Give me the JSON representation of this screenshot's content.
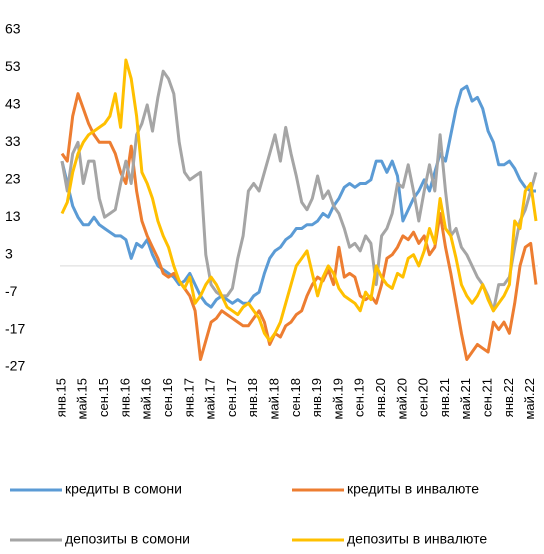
{
  "chart_data": {
    "type": "line",
    "categories": [
      "янв.15",
      null,
      null,
      null,
      "май.15",
      null,
      null,
      null,
      "сен.15",
      null,
      null,
      null,
      "янв.16",
      null,
      null,
      null,
      "май.16",
      null,
      null,
      null,
      "сен.16",
      null,
      null,
      null,
      "янв.17",
      null,
      null,
      null,
      "май.17",
      null,
      null,
      null,
      "сен.17",
      null,
      null,
      null,
      "янв.18",
      null,
      null,
      null,
      "май.18",
      null,
      null,
      null,
      "сен.18",
      null,
      null,
      null,
      "янв.19",
      null,
      null,
      null,
      "май.19",
      null,
      null,
      null,
      "сен.19",
      null,
      null,
      null,
      "янв.20",
      null,
      null,
      null,
      "май.20",
      null,
      null,
      null,
      "сен.20",
      null,
      null,
      null,
      "янв.21",
      null,
      null,
      null,
      "май.21",
      null,
      null,
      null,
      "сен.21",
      null,
      null,
      null,
      "янв.22",
      null,
      null,
      null,
      "май.22",
      null
    ],
    "series": [
      {
        "name": "кредиты в сомони",
        "color": "#5b9bd5",
        "values": [
          28,
          22,
          16,
          13,
          11,
          11,
          13,
          11,
          10,
          9,
          8,
          8,
          7,
          2,
          6,
          5,
          7,
          3,
          0,
          -1,
          -2,
          -3,
          -5,
          -4,
          -2,
          -5,
          -8,
          -10,
          -11,
          -9,
          -8,
          -9,
          -10,
          -9,
          -10,
          -10,
          -8,
          -7,
          -2,
          2,
          4,
          5,
          7,
          8,
          10,
          10,
          11,
          11,
          12,
          14,
          13,
          16,
          18,
          21,
          22,
          21,
          22,
          22,
          23,
          28,
          28,
          25,
          28,
          24,
          12,
          15,
          18,
          20,
          23,
          20,
          25,
          30,
          28,
          35,
          42,
          47,
          48,
          44,
          45,
          42,
          36,
          33,
          27,
          27,
          28,
          26,
          23,
          21,
          20,
          20
        ]
      },
      {
        "name": "кредиты в инвалюте",
        "color": "#ed7d31",
        "values": [
          30,
          28,
          40,
          46,
          42,
          38,
          35,
          33,
          33,
          33,
          30,
          25,
          22,
          32,
          20,
          12,
          8,
          5,
          2,
          -2,
          -3,
          -2,
          -4,
          -6,
          -8,
          -12,
          -25,
          -20,
          -15,
          -14,
          -12,
          -13,
          -14,
          -15,
          -16,
          -16,
          -14,
          -12,
          -15,
          -21,
          -18,
          -19,
          -16,
          -15,
          -13,
          -12,
          -8,
          -5,
          -3,
          -4,
          -1,
          -5,
          5,
          -3,
          -2,
          -3,
          -8,
          -9,
          -8,
          -10,
          -5,
          2,
          3,
          5,
          8,
          7,
          9,
          6,
          8,
          3,
          5,
          14,
          5,
          -2,
          -10,
          -18,
          -25,
          -23,
          -21,
          -22,
          -23,
          -15,
          -17,
          -15,
          -18,
          -10,
          0,
          5,
          6,
          -5
        ]
      },
      {
        "name": "депозиты в сомони",
        "color": "#a5a5a5",
        "values": [
          28,
          20,
          30,
          33,
          22,
          28,
          28,
          18,
          13,
          14,
          15,
          22,
          28,
          22,
          35,
          38,
          43,
          36,
          45,
          52,
          50,
          46,
          33,
          25,
          23,
          24,
          25,
          3,
          -5,
          -7,
          -8,
          -8,
          -6,
          2,
          8,
          20,
          22,
          20,
          25,
          30,
          35,
          28,
          37,
          30,
          24,
          17,
          15,
          18,
          24,
          18,
          20,
          16,
          14,
          10,
          5,
          6,
          4,
          8,
          6,
          -5,
          8,
          10,
          14,
          22,
          21,
          27,
          20,
          12,
          20,
          27,
          20,
          35,
          20,
          8,
          10,
          5,
          3,
          0,
          -3,
          -5,
          -8,
          -12,
          -5,
          -5,
          -3,
          5,
          12,
          15,
          20,
          25
        ]
      },
      {
        "name": "депозиты в инвалюте",
        "color": "#ffc000",
        "values": [
          14,
          17,
          25,
          30,
          33,
          35,
          36,
          37,
          38,
          40,
          46,
          37,
          55,
          50,
          40,
          25,
          22,
          18,
          12,
          8,
          5,
          0,
          -4,
          -6,
          -3,
          -10,
          -8,
          -5,
          -3,
          -5,
          -8,
          -11,
          -12,
          -13,
          -11,
          -10,
          -12,
          -14,
          -18,
          -20,
          -18,
          -15,
          -10,
          -5,
          0,
          2,
          4,
          -2,
          -8,
          -3,
          0,
          -2,
          -6,
          -8,
          -9,
          -10,
          -12,
          -7,
          -9,
          0,
          -3,
          -5,
          -6,
          -2,
          -3,
          2,
          3,
          0,
          4,
          10,
          6,
          18,
          10,
          8,
          2,
          -5,
          -8,
          -10,
          -8,
          -5,
          -9,
          -12,
          -10,
          -8,
          -5,
          12,
          10,
          20,
          22,
          12
        ]
      }
    ],
    "ylim": [
      -27,
      63
    ],
    "yticks": [
      -27,
      -17,
      -7,
      3,
      13,
      23,
      33,
      43,
      53,
      63
    ]
  }
}
